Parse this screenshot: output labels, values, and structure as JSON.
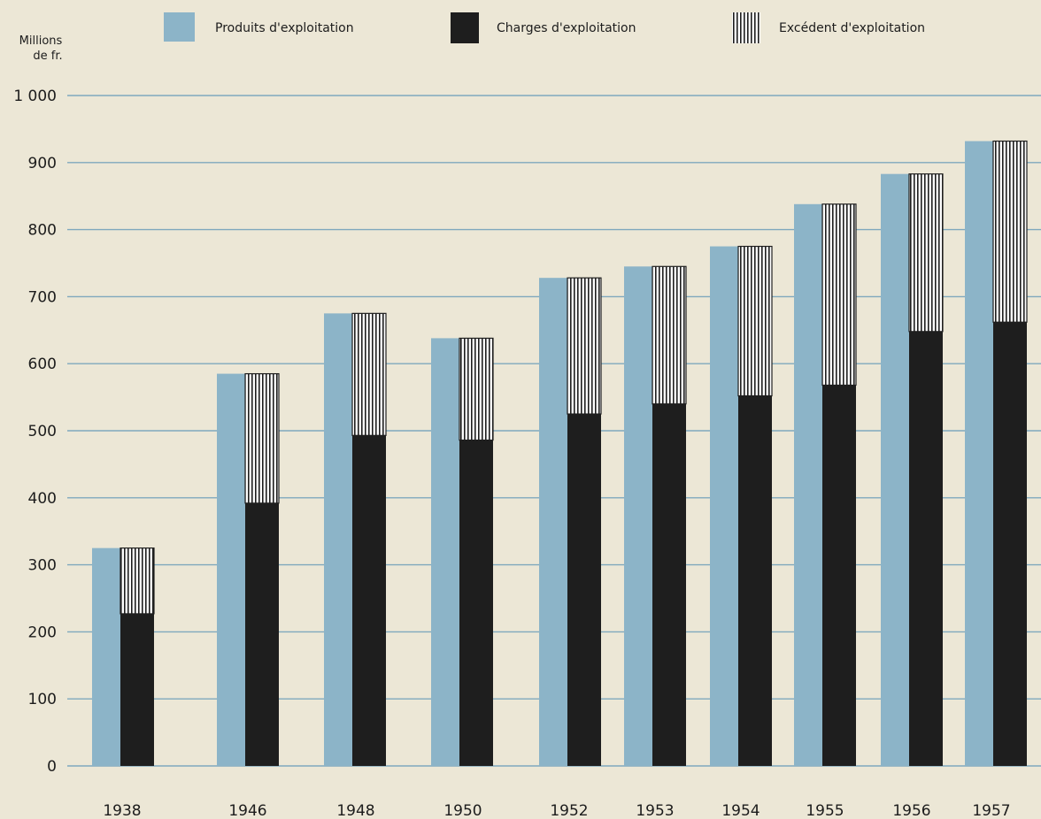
{
  "chart_data": {
    "type": "bar",
    "stacked_overlay": true,
    "title": "",
    "xlabel": "",
    "ylabel_lines": [
      "Millions",
      "de fr."
    ],
    "ylim": [
      0,
      1000
    ],
    "yticks": [
      0,
      100,
      200,
      300,
      400,
      500,
      600,
      700,
      800,
      900,
      1000
    ],
    "ytick_labels": [
      "0",
      "100",
      "200",
      "300",
      "400",
      "500",
      "600",
      "700",
      "800",
      "900",
      "1 000"
    ],
    "grid": true,
    "legend_position": "top",
    "categories": [
      "1938",
      "1946",
      "1948",
      "1950",
      "1952",
      "1953",
      "1954",
      "1955",
      "1956",
      "1957"
    ],
    "series": [
      {
        "name": "Produits d'exploitation",
        "color": "#8cb4c8",
        "values": [
          325,
          585,
          675,
          638,
          728,
          745,
          775,
          838,
          883,
          932
        ]
      },
      {
        "name": "Charges d'exploitation",
        "color": "#1e1e1e",
        "values": [
          227,
          392,
          493,
          486,
          525,
          540,
          552,
          568,
          648,
          662
        ]
      },
      {
        "name": "Excédent d'exploitation",
        "color": "#1e1e1e",
        "pattern": "vertical-hatch",
        "values": [
          98,
          193,
          182,
          152,
          203,
          205,
          223,
          270,
          235,
          270
        ]
      }
    ]
  }
}
